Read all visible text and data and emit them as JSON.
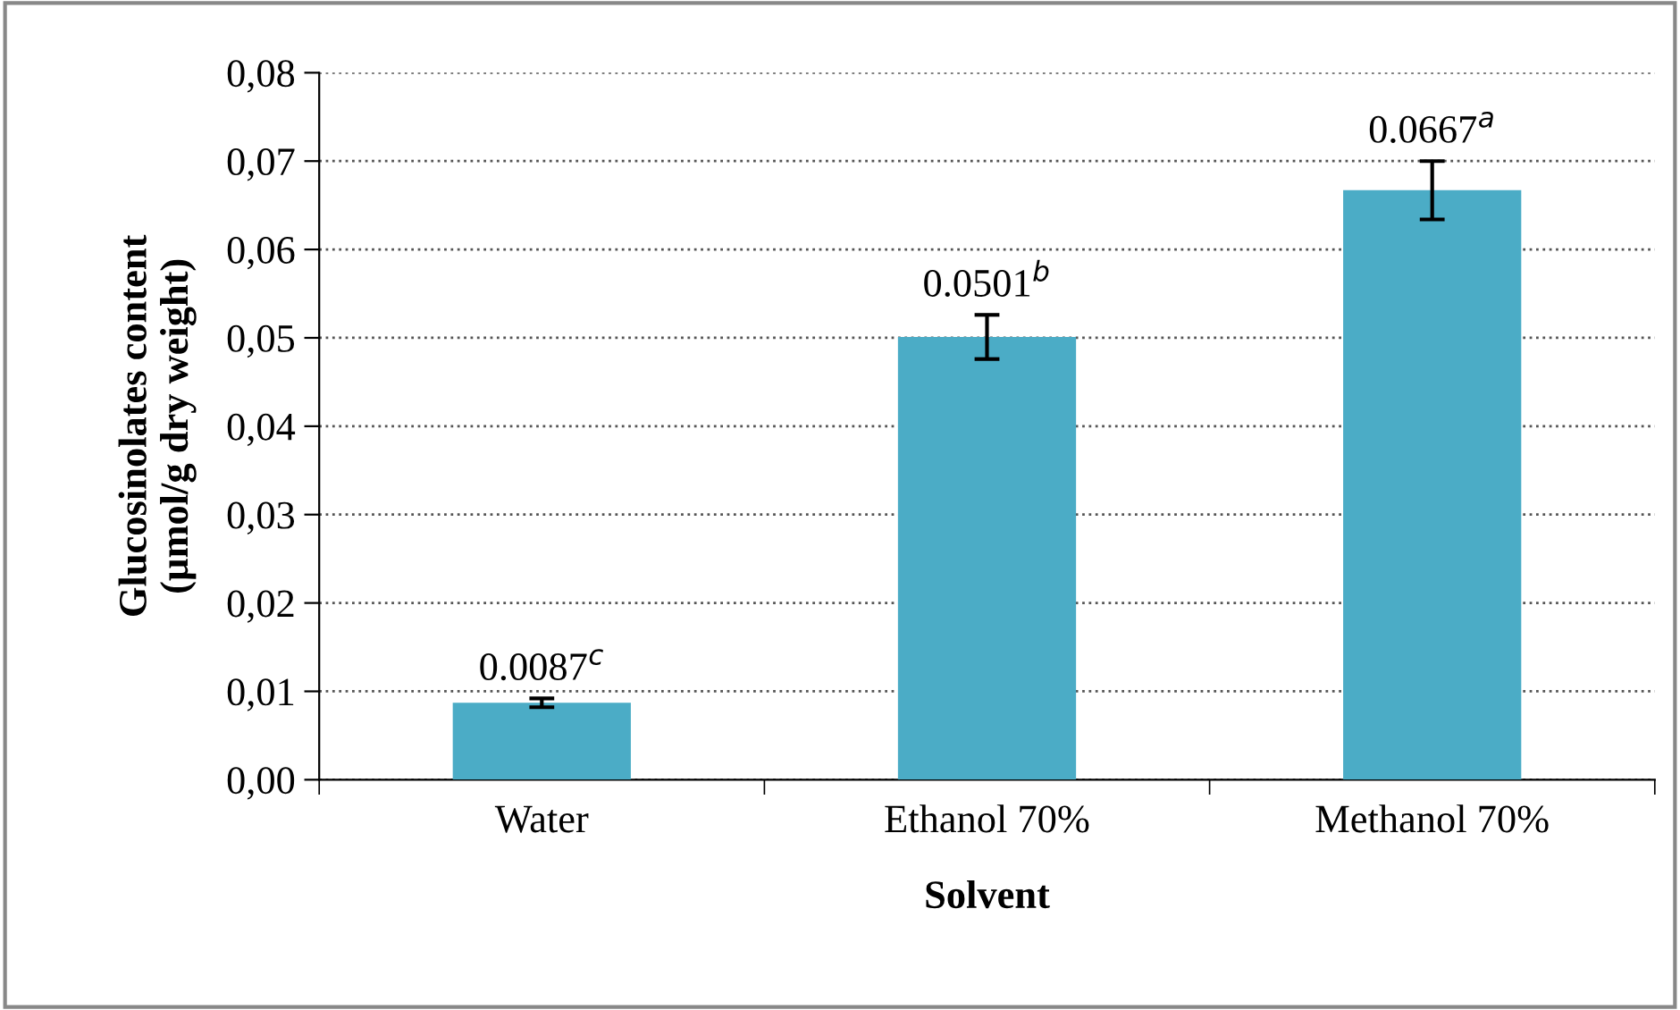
{
  "chart_data": {
    "type": "bar",
    "xlabel": "Solvent",
    "ylabel": "Glucosinolates content\n(µmol/g dry weight)",
    "categories": [
      "Water",
      "Ethanol 70%",
      "Methanol 70%"
    ],
    "values": [
      0.0087,
      0.0501,
      0.0667
    ],
    "errors": [
      0.0005,
      0.0025,
      0.0033
    ],
    "value_labels": [
      "0.0087$^{c}$",
      "0.0501$^{b}$",
      "0.0667$^{a}$"
    ],
    "color": "#4bacc6",
    "ylim": [
      0,
      0.08
    ],
    "yticks": [
      {
        "value": 0,
        "label": "0,00"
      },
      {
        "value": 0.01,
        "label": "0,01"
      },
      {
        "value": 0.02,
        "label": "0,02"
      },
      {
        "value": 0.03,
        "label": "0,03"
      },
      {
        "value": 0.04,
        "label": "0,04"
      },
      {
        "value": 0.05,
        "label": "0,05"
      },
      {
        "value": 0.06,
        "label": "0,06"
      },
      {
        "value": 0.07,
        "label": "0,07"
      },
      {
        "value": 0.08,
        "label": "0,08"
      }
    ],
    "grid": "y",
    "legend": false
  }
}
